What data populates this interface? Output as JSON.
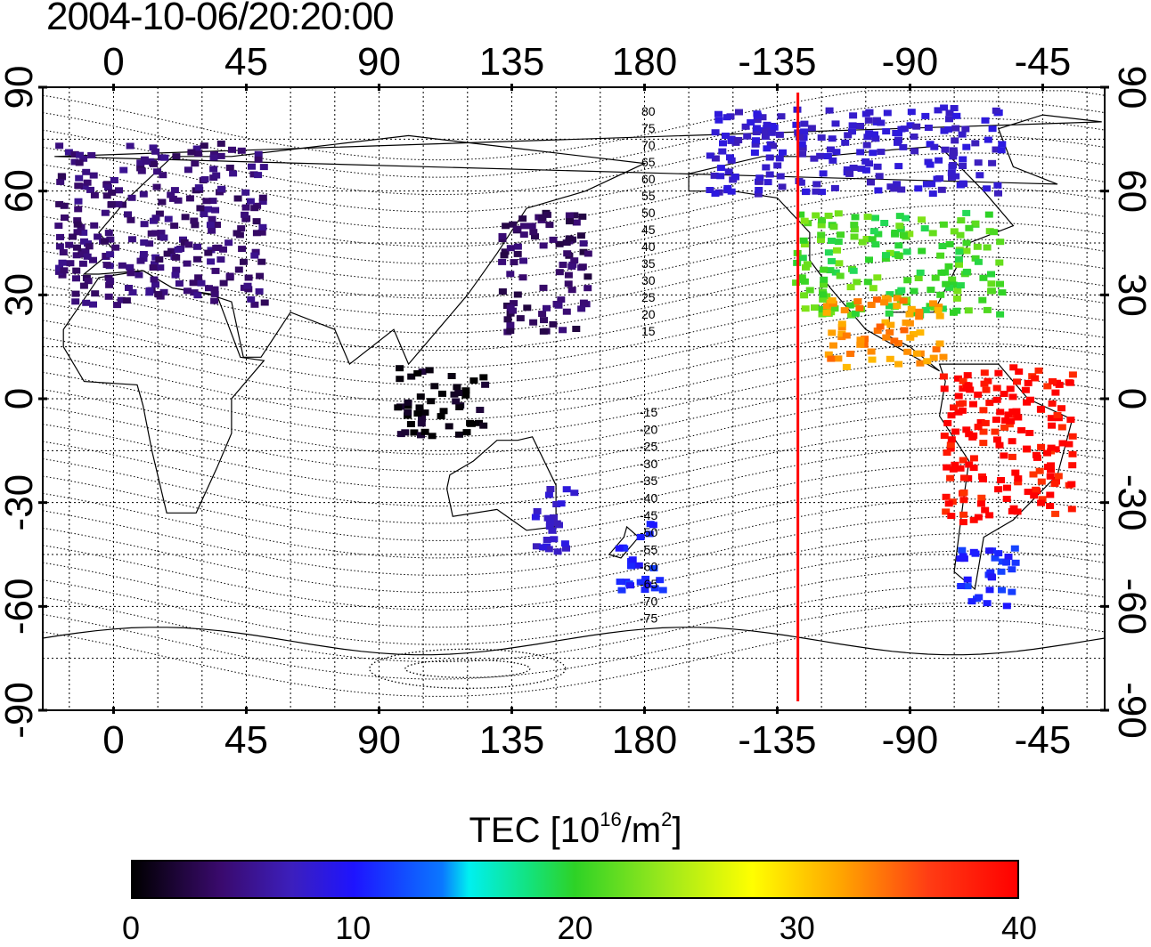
{
  "title": "2004-10-06/20:20:00",
  "map": {
    "lon_ticks": [
      "0",
      "45",
      "90",
      "135",
      "180",
      "-135",
      "-90",
      "-45"
    ],
    "lat_ticks": [
      "90",
      "60",
      "30",
      "0",
      "-30",
      "-60",
      "-90"
    ],
    "lon_range": [
      -24,
      336
    ],
    "lat_range": [
      -90,
      90
    ],
    "grid": true,
    "grid_step_lon": 15,
    "grid_step_lat": 15,
    "marker_line_lon": -128,
    "marker_line_color": "#ff0000",
    "mag_contour_labels_north": [
      "80",
      "75",
      "70",
      "65",
      "60",
      "55",
      "50",
      "45",
      "40",
      "35",
      "30",
      "25",
      "20",
      "15"
    ],
    "mag_contour_labels_south": [
      "-15",
      "-20",
      "-25",
      "-30",
      "-35",
      "-40",
      "-45",
      "-50",
      "-55",
      "-60",
      "-65",
      "-70",
      "-75"
    ]
  },
  "colorbar": {
    "label_main": "TEC  [10",
    "label_exp": "16",
    "label_unit": "/m",
    "label_unit_exp": "2",
    "label_end": "]",
    "min": 0,
    "max": 40,
    "ticks": [
      "0",
      "10",
      "20",
      "30",
      "40"
    ],
    "colormap": "#000000,#3a0a6e,#3c1fbd,#1e14ff,#0a78ff,#00f0f0,#2ed226,#ffff00,#ffa500,#ff0000"
  },
  "chart_data": {
    "type": "heatmap",
    "title": "2004-10-06/20:20:00",
    "xlabel": "",
    "ylabel": "",
    "colorbar_label": "TEC [10^16/m^2]",
    "regions": [
      {
        "lon": [
          -20,
          50
        ],
        "lat": [
          28,
          75
        ],
        "tec": 5
      },
      {
        "lon": [
          130,
          160
        ],
        "lat": [
          20,
          55
        ],
        "tec": 4
      },
      {
        "lon": [
          95,
          125
        ],
        "lat": [
          -10,
          10
        ],
        "tec": 1
      },
      {
        "lon": [
          140,
          155
        ],
        "lat": [
          -45,
          -25
        ],
        "tec": 10
      },
      {
        "lon": [
          170,
          185
        ],
        "lat": [
          -55,
          -35
        ],
        "tec": 14
      },
      {
        "lon": [
          -130,
          -60
        ],
        "lat": [
          25,
          55
        ],
        "tec": 27
      },
      {
        "lon": [
          -120,
          -80
        ],
        "lat": [
          10,
          30
        ],
        "tec": 36
      },
      {
        "lon": [
          -80,
          -35
        ],
        "lat": [
          -35,
          10
        ],
        "tec": 40
      },
      {
        "lon": [
          -75,
          -55
        ],
        "lat": [
          -60,
          -40
        ],
        "tec": 14
      },
      {
        "lon": [
          -160,
          -60
        ],
        "lat": [
          60,
          85
        ],
        "tec": 10
      }
    ]
  }
}
